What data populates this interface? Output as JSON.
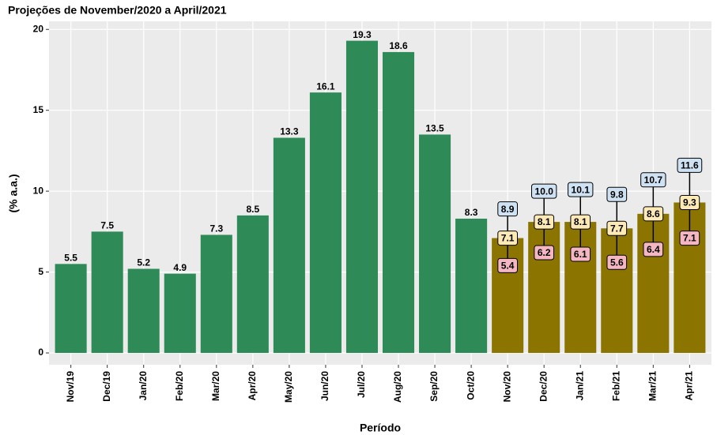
{
  "chart_data": {
    "type": "bar",
    "title": "Projeções de November/2020 a April/2021",
    "x_label": "Período",
    "y_label": "(% a.a.)",
    "categories": [
      "Nov/19",
      "Dec/19",
      "Jan/20",
      "Feb/20",
      "Mar/20",
      "Apr/20",
      "May/20",
      "Jun/20",
      "Jul/20",
      "Aug/20",
      "Sep/20",
      "Oct/20",
      "Nov/20",
      "Dec/20",
      "Jan/21",
      "Feb/21",
      "Mar/21",
      "Apr/21"
    ],
    "series": [
      {
        "color": "#2e8b57",
        "values": [
          5.5,
          7.5,
          5.2,
          4.9,
          7.3,
          8.5,
          13.3,
          16.1,
          19.3,
          18.6,
          13.5,
          8.3,
          null,
          null,
          null,
          null,
          null,
          null
        ]
      },
      {
        "color": "#8b7500",
        "values": [
          null,
          null,
          null,
          null,
          null,
          null,
          null,
          null,
          null,
          null,
          null,
          null,
          7.1,
          8.1,
          8.1,
          7.7,
          8.6,
          9.3
        ],
        "low": [
          null,
          null,
          null,
          null,
          null,
          null,
          null,
          null,
          null,
          null,
          null,
          null,
          5.4,
          6.2,
          6.1,
          5.6,
          6.4,
          7.1
        ],
        "high": [
          null,
          null,
          null,
          null,
          null,
          null,
          null,
          null,
          null,
          null,
          null,
          null,
          8.9,
          10,
          10.1,
          9.8,
          10.7,
          11.6
        ],
        "high_value_labels": [
          null,
          null,
          null,
          null,
          null,
          null,
          null,
          null,
          null,
          null,
          null,
          null,
          "8.9",
          "10.0",
          "10.1",
          "9.8",
          "10.7",
          "11.6"
        ]
      }
    ],
    "ylim": [
      -0.73,
      20.5
    ],
    "yticks": [
      0,
      5,
      10,
      15,
      20
    ],
    "grid": true
  }
}
